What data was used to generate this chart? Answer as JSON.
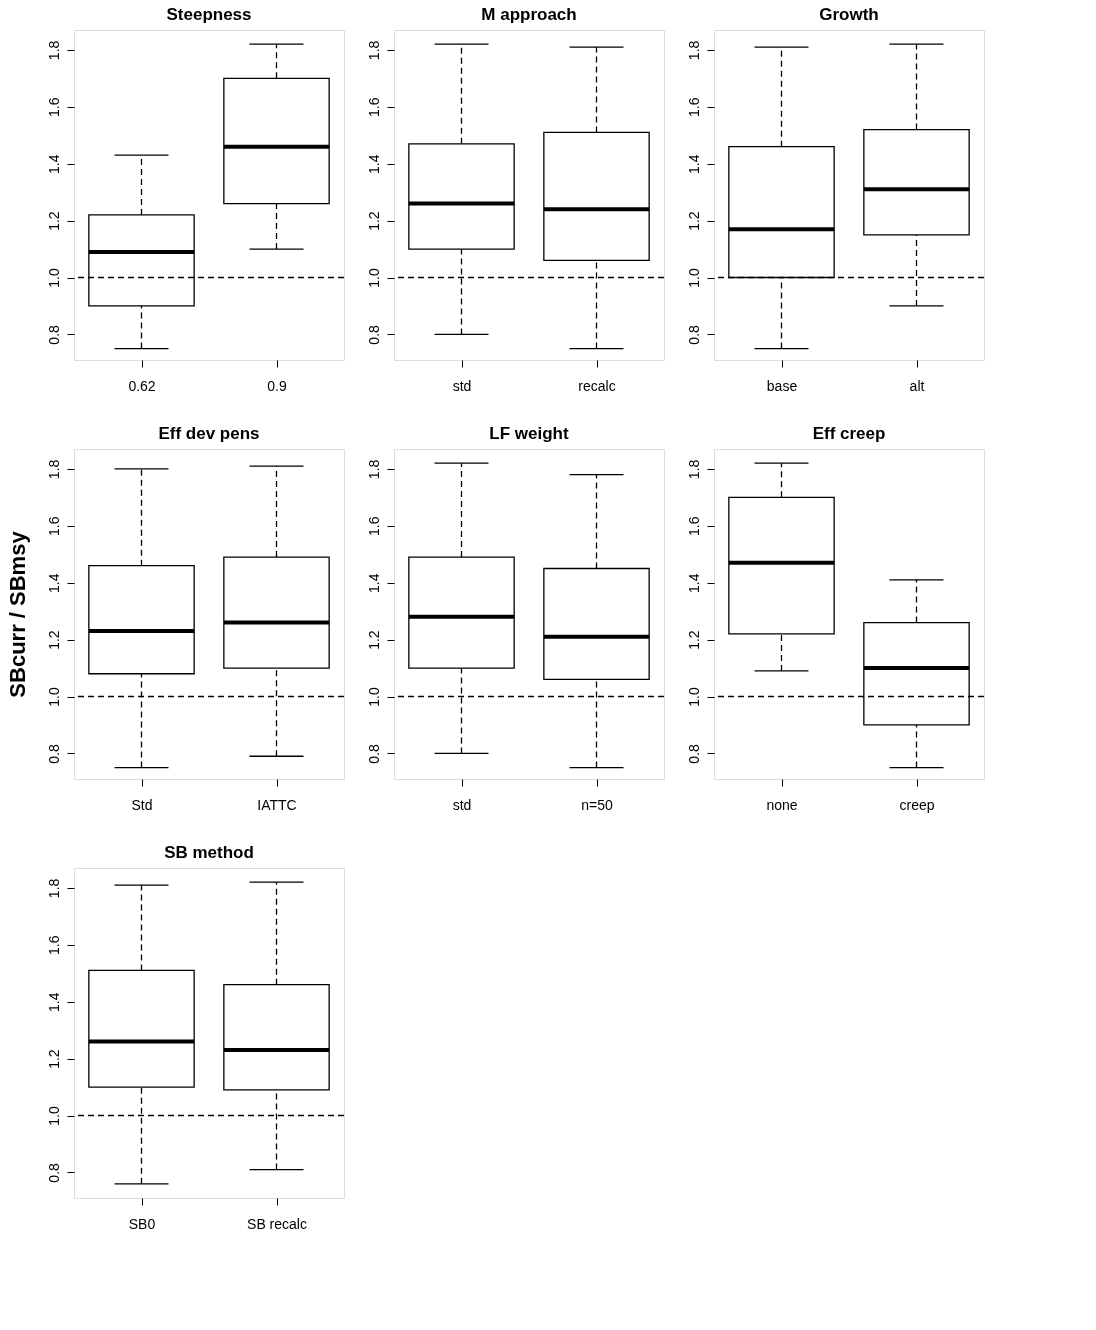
{
  "chart_data": [
    {
      "type": "box",
      "title": "Steepness",
      "categories": [
        "0.62",
        "0.9"
      ],
      "ylim": [
        0.71,
        1.87
      ],
      "yticks": [
        {
          "value": 0.8,
          "label": "0.8"
        },
        {
          "value": 1.0,
          "label": "1.0"
        },
        {
          "value": 1.2,
          "label": "1.2"
        },
        {
          "value": 1.4,
          "label": "1.4"
        },
        {
          "value": 1.6,
          "label": "1.6"
        },
        {
          "value": 1.8,
          "label": "1.8"
        }
      ],
      "grid": false,
      "ref_lines": [
        {
          "axis": "y",
          "value": 1.0,
          "line_style": "dashed",
          "color": "#000000"
        }
      ],
      "boxes": [
        {
          "low": 0.75,
          "q1": 0.9,
          "median": 1.09,
          "q3": 1.22,
          "high": 1.43
        },
        {
          "low": 1.1,
          "q1": 1.26,
          "median": 1.46,
          "q3": 1.7,
          "high": 1.82
        }
      ]
    },
    {
      "type": "box",
      "title": "M approach",
      "categories": [
        "std",
        "recalc"
      ],
      "ylim": [
        0.71,
        1.87
      ],
      "yticks": [
        {
          "value": 0.8,
          "label": "0.8"
        },
        {
          "value": 1.0,
          "label": "1.0"
        },
        {
          "value": 1.2,
          "label": "1.2"
        },
        {
          "value": 1.4,
          "label": "1.4"
        },
        {
          "value": 1.6,
          "label": "1.6"
        },
        {
          "value": 1.8,
          "label": "1.8"
        }
      ],
      "grid": false,
      "ref_lines": [
        {
          "axis": "y",
          "value": 1.0,
          "line_style": "dashed",
          "color": "#000000"
        }
      ],
      "boxes": [
        {
          "low": 0.8,
          "q1": 1.1,
          "median": 1.26,
          "q3": 1.47,
          "high": 1.82
        },
        {
          "low": 0.75,
          "q1": 1.06,
          "median": 1.24,
          "q3": 1.51,
          "high": 1.81
        }
      ]
    },
    {
      "type": "box",
      "title": "Growth",
      "categories": [
        "base",
        "alt"
      ],
      "ylim": [
        0.71,
        1.87
      ],
      "yticks": [
        {
          "value": 0.8,
          "label": "0.8"
        },
        {
          "value": 1.0,
          "label": "1.0"
        },
        {
          "value": 1.2,
          "label": "1.2"
        },
        {
          "value": 1.4,
          "label": "1.4"
        },
        {
          "value": 1.6,
          "label": "1.6"
        },
        {
          "value": 1.8,
          "label": "1.8"
        }
      ],
      "grid": false,
      "ref_lines": [
        {
          "axis": "y",
          "value": 1.0,
          "line_style": "dashed",
          "color": "#000000"
        }
      ],
      "boxes": [
        {
          "low": 0.75,
          "q1": 1.0,
          "median": 1.17,
          "q3": 1.46,
          "high": 1.81
        },
        {
          "low": 0.9,
          "q1": 1.15,
          "median": 1.31,
          "q3": 1.52,
          "high": 1.82
        }
      ]
    },
    {
      "type": "box",
      "title": "Eff dev pens",
      "ylabel": "SBcurr / SBmsy",
      "categories": [
        "Std",
        "IATTC"
      ],
      "ylim": [
        0.71,
        1.87
      ],
      "yticks": [
        {
          "value": 0.8,
          "label": "0.8"
        },
        {
          "value": 1.0,
          "label": "1.0"
        },
        {
          "value": 1.2,
          "label": "1.2"
        },
        {
          "value": 1.4,
          "label": "1.4"
        },
        {
          "value": 1.6,
          "label": "1.6"
        },
        {
          "value": 1.8,
          "label": "1.8"
        }
      ],
      "grid": false,
      "ref_lines": [
        {
          "axis": "y",
          "value": 1.0,
          "line_style": "dashed",
          "color": "#000000"
        }
      ],
      "boxes": [
        {
          "low": 0.75,
          "q1": 1.08,
          "median": 1.23,
          "q3": 1.46,
          "high": 1.8
        },
        {
          "low": 0.79,
          "q1": 1.1,
          "median": 1.26,
          "q3": 1.49,
          "high": 1.81
        }
      ]
    },
    {
      "type": "box",
      "title": "LF weight",
      "categories": [
        "std",
        "n=50"
      ],
      "ylim": [
        0.71,
        1.87
      ],
      "yticks": [
        {
          "value": 0.8,
          "label": "0.8"
        },
        {
          "value": 1.0,
          "label": "1.0"
        },
        {
          "value": 1.2,
          "label": "1.2"
        },
        {
          "value": 1.4,
          "label": "1.4"
        },
        {
          "value": 1.6,
          "label": "1.6"
        },
        {
          "value": 1.8,
          "label": "1.8"
        }
      ],
      "grid": false,
      "ref_lines": [
        {
          "axis": "y",
          "value": 1.0,
          "line_style": "dashed",
          "color": "#000000"
        }
      ],
      "boxes": [
        {
          "low": 0.8,
          "q1": 1.1,
          "median": 1.28,
          "q3": 1.49,
          "high": 1.82
        },
        {
          "low": 0.75,
          "q1": 1.06,
          "median": 1.21,
          "q3": 1.45,
          "high": 1.78
        }
      ]
    },
    {
      "type": "box",
      "title": "Eff creep",
      "categories": [
        "none",
        "creep"
      ],
      "ylim": [
        0.71,
        1.87
      ],
      "yticks": [
        {
          "value": 0.8,
          "label": "0.8"
        },
        {
          "value": 1.0,
          "label": "1.0"
        },
        {
          "value": 1.2,
          "label": "1.2"
        },
        {
          "value": 1.4,
          "label": "1.4"
        },
        {
          "value": 1.6,
          "label": "1.6"
        },
        {
          "value": 1.8,
          "label": "1.8"
        }
      ],
      "grid": false,
      "ref_lines": [
        {
          "axis": "y",
          "value": 1.0,
          "line_style": "dashed",
          "color": "#000000"
        }
      ],
      "boxes": [
        {
          "low": 1.09,
          "q1": 1.22,
          "median": 1.47,
          "q3": 1.7,
          "high": 1.82
        },
        {
          "low": 0.75,
          "q1": 0.9,
          "median": 1.1,
          "q3": 1.26,
          "high": 1.41
        }
      ]
    },
    {
      "type": "box",
      "title": "SB method",
      "categories": [
        "SB0",
        "SB recalc"
      ],
      "ylim": [
        0.71,
        1.87
      ],
      "yticks": [
        {
          "value": 0.8,
          "label": "0.8"
        },
        {
          "value": 1.0,
          "label": "1.0"
        },
        {
          "value": 1.2,
          "label": "1.2"
        },
        {
          "value": 1.4,
          "label": "1.4"
        },
        {
          "value": 1.6,
          "label": "1.6"
        },
        {
          "value": 1.8,
          "label": "1.8"
        }
      ],
      "grid": false,
      "ref_lines": [
        {
          "axis": "y",
          "value": 1.0,
          "line_style": "dashed",
          "color": "#000000"
        }
      ],
      "boxes": [
        {
          "low": 0.76,
          "q1": 1.1,
          "median": 1.26,
          "q3": 1.51,
          "high": 1.81
        },
        {
          "low": 0.81,
          "q1": 1.09,
          "median": 1.23,
          "q3": 1.46,
          "high": 1.82
        }
      ]
    }
  ]
}
